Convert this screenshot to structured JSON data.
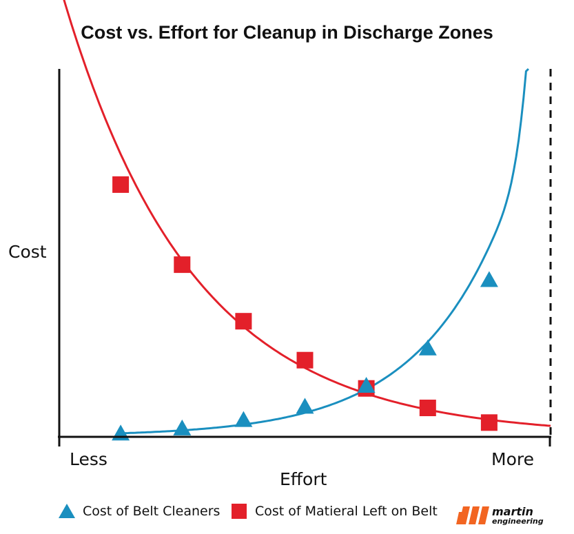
{
  "chart_data": {
    "type": "line",
    "title": "Cost vs. Effort for Cleanup in Discharge Zones",
    "xlabel": "Effort",
    "ylabel": "Cost",
    "xtick_labels": [
      "Less",
      "More"
    ],
    "xlim": [
      0,
      8
    ],
    "ylim": [
      0,
      10
    ],
    "grid": false,
    "legend_position": "bottom",
    "limit_line_x": 8,
    "series": [
      {
        "name": "Cost of Belt Cleaners",
        "marker": "triangle",
        "color": "#1a8fbf",
        "x": [
          1,
          2,
          3,
          4,
          5,
          6,
          7
        ],
        "y": [
          0.05,
          0.19,
          0.42,
          0.78,
          1.35,
          2.37,
          4.23
        ]
      },
      {
        "name": "Cost of Matieral Left on Belt",
        "marker": "square",
        "color": "#e3202a",
        "x": [
          1,
          2,
          3,
          4,
          5,
          6,
          7
        ],
        "y": [
          6.85,
          4.67,
          3.13,
          2.07,
          1.3,
          0.77,
          0.37
        ]
      }
    ]
  },
  "logo": {
    "name": "martin engineering",
    "word1": "martin",
    "word2": "engineering",
    "color": "#f26522"
  }
}
